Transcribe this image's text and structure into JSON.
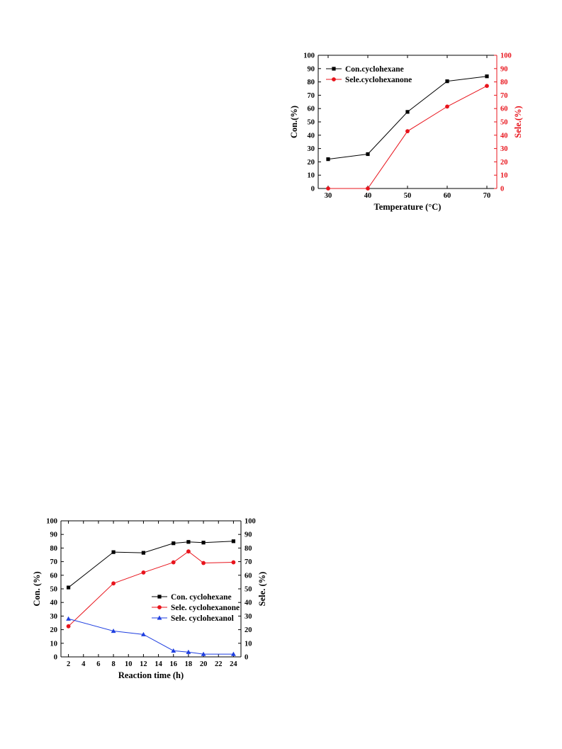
{
  "chart_data": [
    {
      "type": "line",
      "title": "",
      "xlabel": "Temperature (°C)",
      "ylabel_left": "Con.(%)",
      "ylabel_right": "Sele.(%)",
      "xlim": [
        27.5,
        72.5
      ],
      "ylim_left": [
        0,
        100
      ],
      "ylim_right": [
        0,
        100
      ],
      "x_ticks": [
        30,
        40,
        50,
        60,
        70
      ],
      "y_ticks": [
        0,
        10,
        20,
        30,
        40,
        50,
        60,
        70,
        80,
        90,
        100
      ],
      "legend_position": "top-left",
      "colors": {
        "right_axis": "#e8141c"
      },
      "series": [
        {
          "name": "Con.cyclohexane",
          "axis": "left",
          "color": "#000000",
          "marker": "square",
          "x": [
            30,
            40,
            50,
            60,
            70
          ],
          "values": [
            22,
            25.8,
            57.5,
            80.5,
            84.2
          ]
        },
        {
          "name": "Sele.cyclohexanone",
          "axis": "right",
          "color": "#e8141c",
          "marker": "circle",
          "x": [
            30,
            40,
            50,
            60,
            70
          ],
          "values": [
            0,
            0,
            43,
            61.5,
            77
          ]
        }
      ]
    },
    {
      "type": "line",
      "title": "",
      "xlabel": "Reaction time (h)",
      "ylabel_left": "Con. (%)",
      "ylabel_right": "Sele. (%)",
      "xlim": [
        1,
        25
      ],
      "ylim_left": [
        0,
        100
      ],
      "ylim_right": [
        0,
        100
      ],
      "x_ticks": [
        2,
        4,
        6,
        8,
        10,
        12,
        14,
        16,
        18,
        20,
        22,
        24
      ],
      "y_ticks": [
        0,
        10,
        20,
        30,
        40,
        50,
        60,
        70,
        80,
        90,
        100
      ],
      "legend_position": "center-right",
      "colors": {
        "right_axis": "#000000"
      },
      "series": [
        {
          "name": "Con. cyclohexane",
          "axis": "left",
          "color": "#000000",
          "marker": "square",
          "x": [
            2,
            8,
            12,
            16,
            18,
            20,
            24
          ],
          "values": [
            51,
            77,
            76.5,
            83.5,
            84.5,
            84,
            85
          ]
        },
        {
          "name": "Sele. cyclohexanone",
          "axis": "right",
          "color": "#e8141c",
          "marker": "circle",
          "x": [
            2,
            8,
            12,
            16,
            18,
            20,
            24
          ],
          "values": [
            22.5,
            54,
            62,
            69.5,
            77.5,
            69,
            69.5
          ]
        },
        {
          "name": "Sele. cyclohexanol",
          "axis": "right",
          "color": "#1f3fe0",
          "marker": "triangle",
          "x": [
            2,
            8,
            12,
            16,
            18,
            20,
            24
          ],
          "values": [
            28,
            19,
            16.5,
            4.5,
            3.5,
            2,
            2
          ]
        }
      ]
    }
  ]
}
